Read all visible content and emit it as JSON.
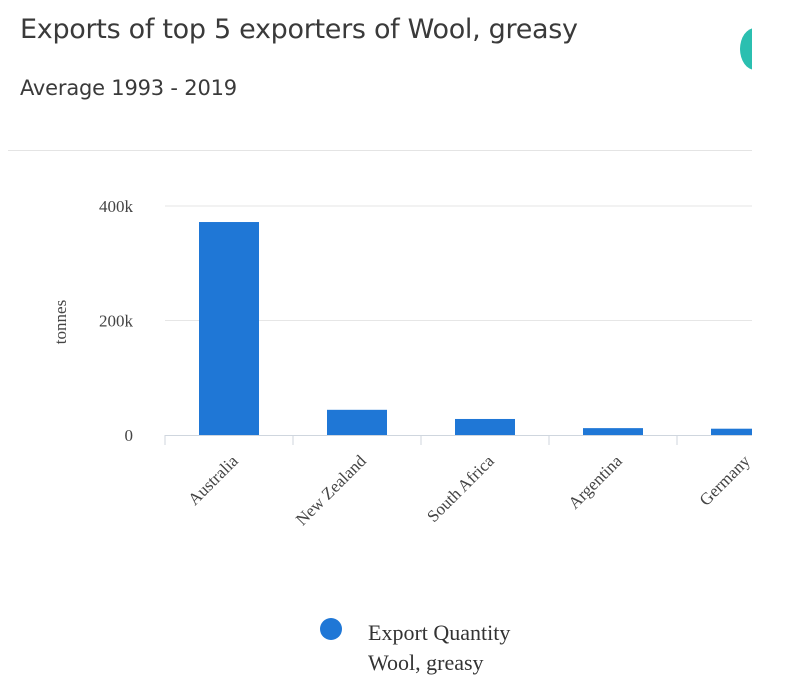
{
  "header": {
    "title": "Exports of top 5 exporters of Wool, greasy",
    "subtitle": "Average 1993 - 2019"
  },
  "colors": {
    "bar": "#1f77d6",
    "accent_button": "#2bbfb0",
    "grid": "#e6e6e6"
  },
  "legend": {
    "line1": "Export Quantity",
    "line2": "Wool, greasy"
  },
  "chart_data": {
    "type": "bar",
    "ylabel": "tonnes",
    "xlabel": "",
    "categories": [
      "Australia",
      "New Zealand",
      "South Africa",
      "Argentina",
      "Germany"
    ],
    "series": [
      {
        "name": "Export Quantity Wool, greasy",
        "values": [
          372000,
          44000,
          28000,
          12000,
          11000
        ]
      }
    ],
    "yticks": [
      0,
      200000,
      400000
    ],
    "ytick_labels": [
      "0",
      "200k",
      "400k"
    ],
    "ylim": [
      0,
      400000
    ],
    "grid": true,
    "legend_position": "bottom"
  }
}
